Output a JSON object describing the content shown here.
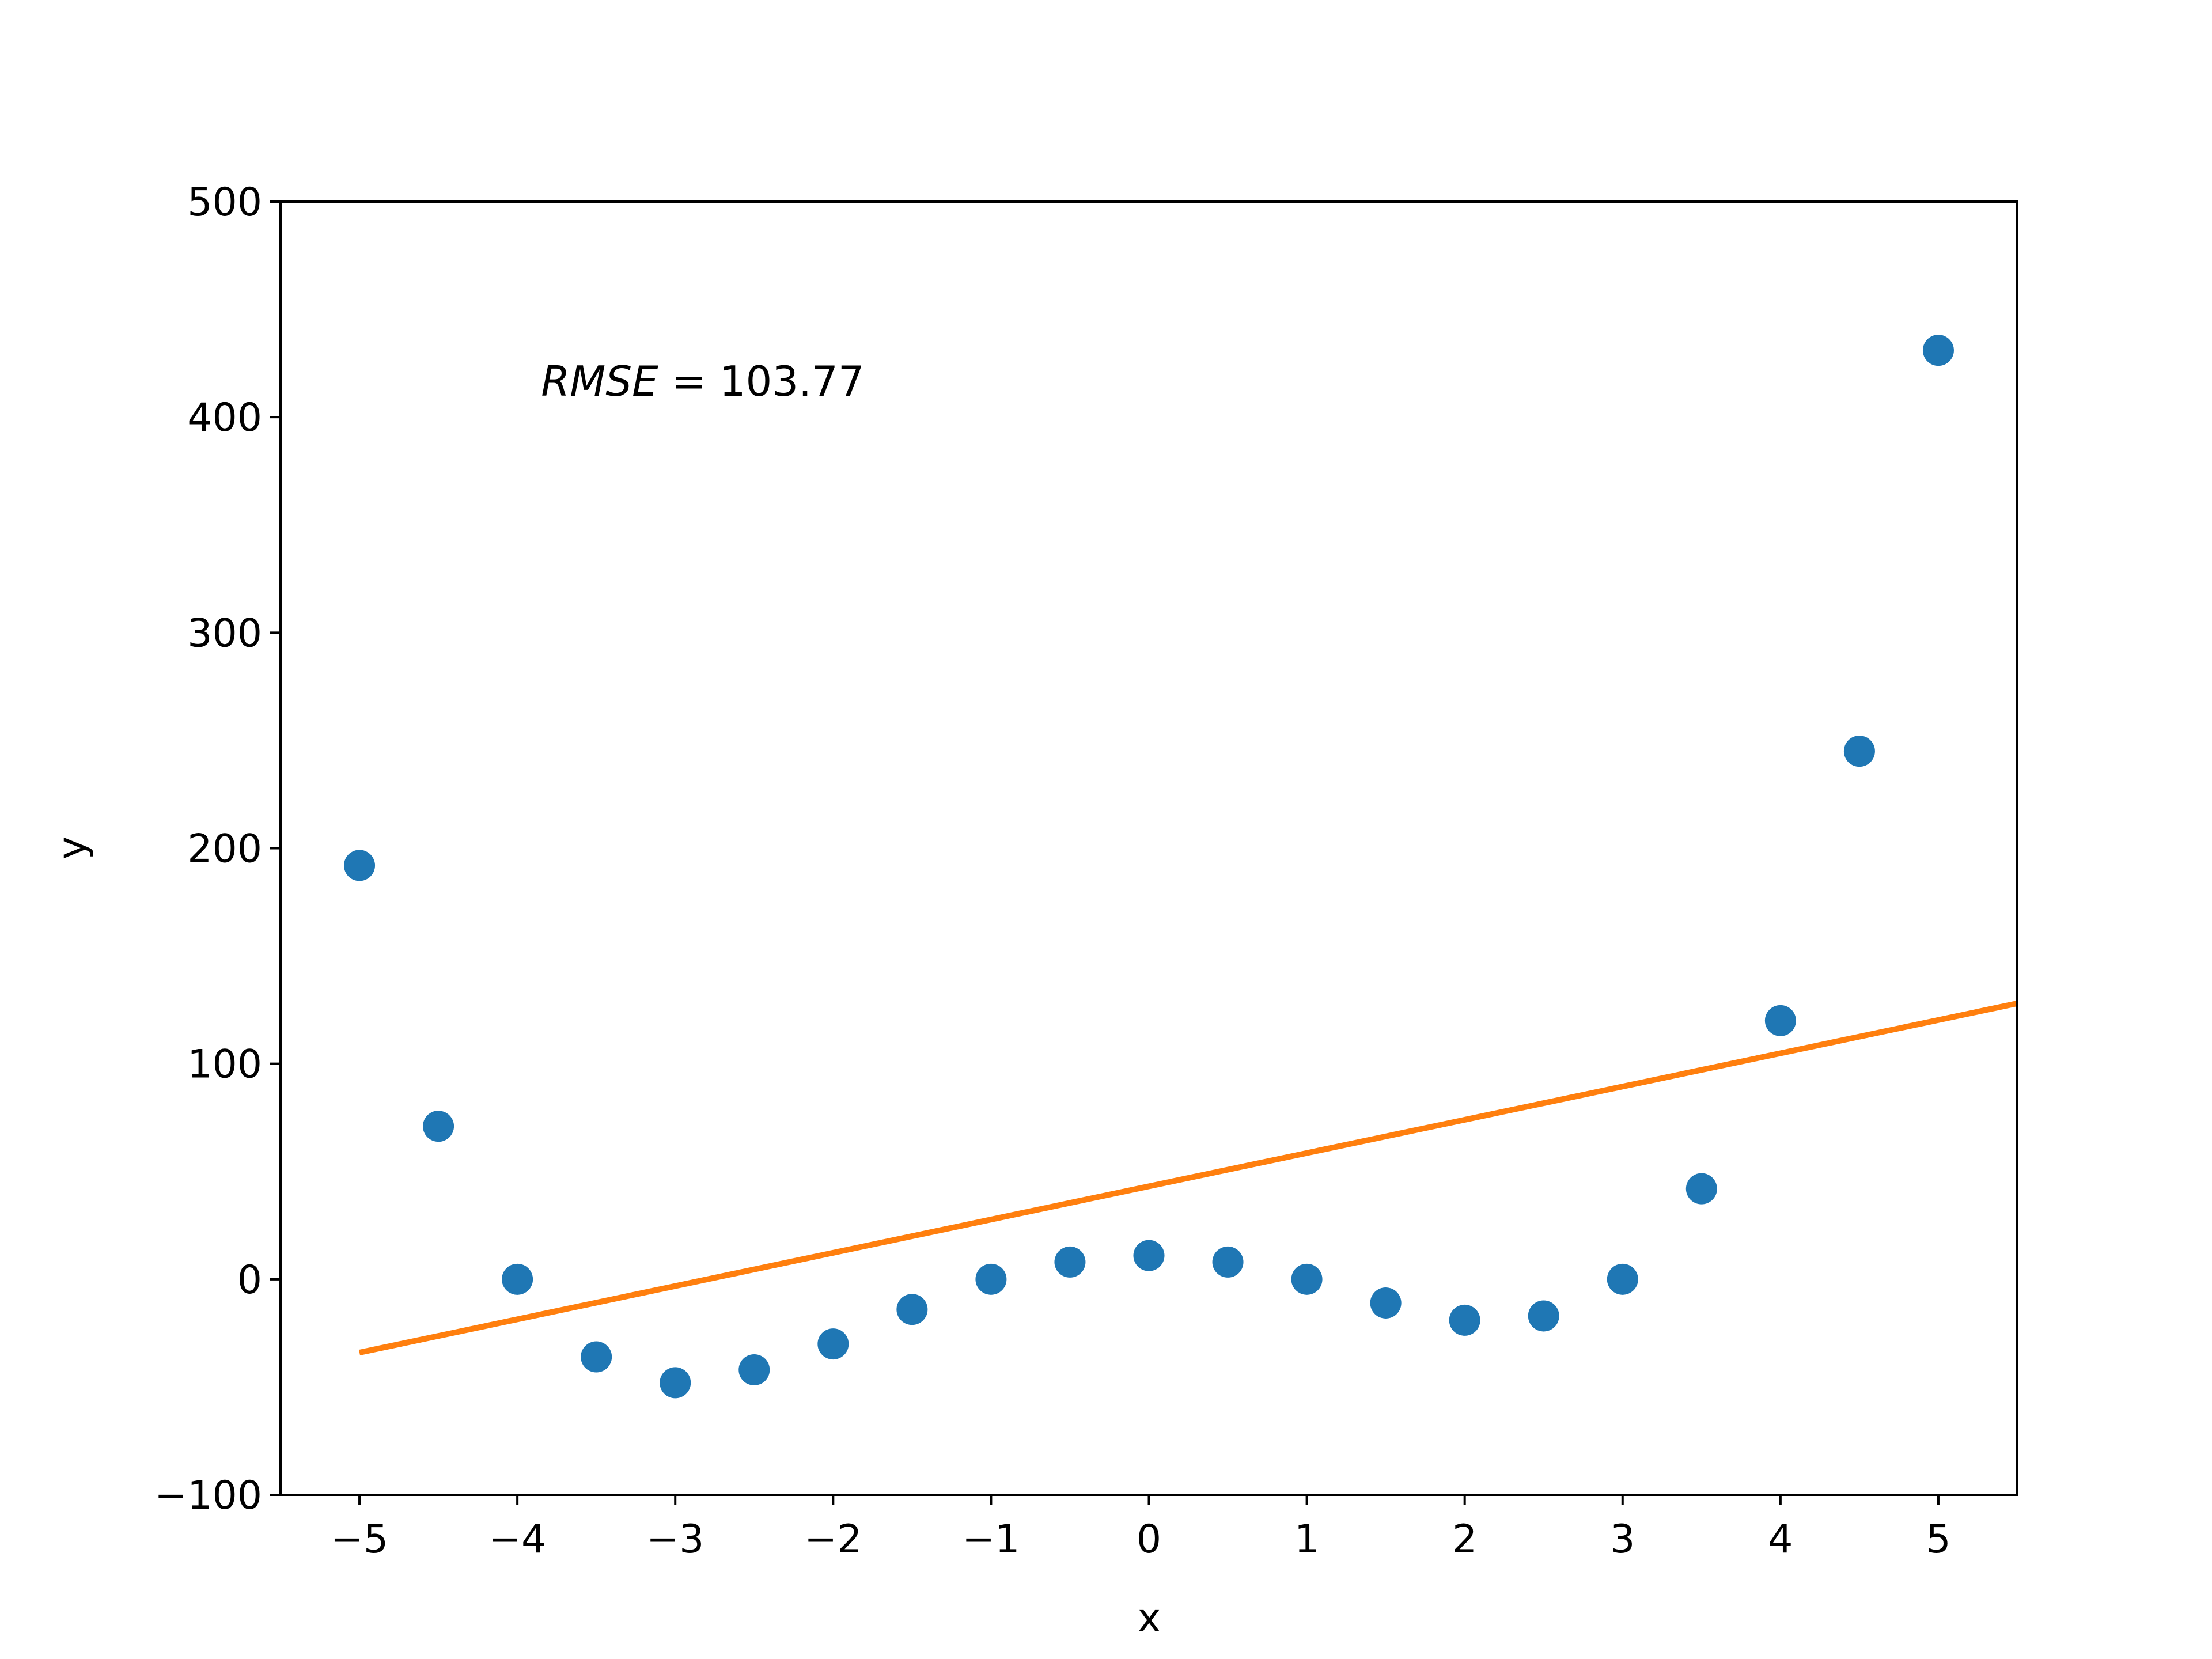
{
  "chart_data": {
    "type": "scatter",
    "x": [
      -5,
      -4.5,
      -4,
      -3.5,
      -3,
      -2.5,
      -2,
      -1.5,
      -1,
      -0.5,
      0,
      0.5,
      1,
      1.5,
      2,
      2.5,
      3,
      3.5,
      4,
      4.5,
      5
    ],
    "series": [
      {
        "kind": "scatter",
        "color": "#1f77b4",
        "values": [
          192,
          71,
          0,
          -36,
          -48,
          -42,
          -30,
          -14,
          0,
          8,
          11,
          8,
          0,
          -11,
          -19,
          -17,
          0,
          42,
          120,
          245,
          431
        ]
      },
      {
        "kind": "line",
        "color": "#ff7f0e",
        "x": [
          -5,
          5.5
        ],
        "values": [
          -34,
          128
        ]
      }
    ],
    "xlabel": "x",
    "ylabel": "y",
    "xlim": [
      -5.5,
      5.5
    ],
    "ylim": [
      -100,
      500
    ],
    "xticks": [
      -5,
      -4,
      -3,
      -2,
      -1,
      0,
      1,
      2,
      3,
      4,
      5
    ],
    "xtick_labels": [
      "−5",
      "−4",
      "−3",
      "−2",
      "−1",
      "0",
      "1",
      "2",
      "3",
      "4",
      "5"
    ],
    "yticks": [
      -100,
      0,
      100,
      200,
      300,
      400,
      500
    ],
    "ytick_labels": [
      "−100",
      "0",
      "100",
      "200",
      "300",
      "400",
      "500"
    ],
    "grid": false,
    "annotation": {
      "italic_part": "RMSE",
      "rest": " = 103.77",
      "x": -3.85,
      "y": 410
    }
  }
}
